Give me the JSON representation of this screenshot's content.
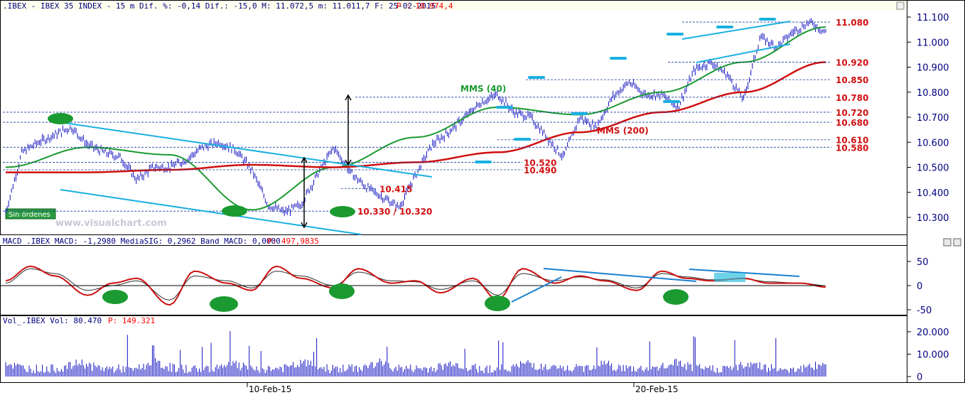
{
  "main_header": {
    "text": ".IBEX - IBEX 35 INDEX -  15 m Dif. %: -0,14 Dif.: -15,0 M: 11.072,5 m: 11.011,7 F: 25-02-2015 ",
    "p_label": "P : 10.974,4",
    "text_color": "#000080",
    "p_color": "#ff0000"
  },
  "macd_header": {
    "text": "MACD_.IBEX MACD: -1,2980 MediaSIG: 0,2962 Band_MACD: 0,0000 ",
    "p_label": "P: 497,9835"
  },
  "vol_header": {
    "text": "Vol_.IBEX Vol: 80.470 ",
    "p_label": "P: 149.321"
  },
  "watermark": "www.visualchart.com",
  "order_badge": "Sin órdenes",
  "colors": {
    "price_bars": "#1010c0",
    "mms40": "#1a9a30",
    "mms200": "#d01010",
    "trendline": "#1ab0e0",
    "level_text": "#d01010",
    "level_line": "#1a3aa0",
    "ellipse": "#1a9a30",
    "macd_line": "#cc1010",
    "signal_line": "#303030",
    "volume": "#1010c0",
    "axis_text": "#000080"
  },
  "chart_data": [
    {
      "type": "line",
      "title": "IBEX 35 INDEX 15 m",
      "y_scale_labels": [
        "11.100",
        "11.000",
        "10.900",
        "10.800",
        "10.700",
        "10.600",
        "10.500",
        "10.400",
        "10.300"
      ],
      "ylim": [
        10230,
        11120
      ],
      "x_labels": [
        "10-Feb-15",
        "20-Feb-15"
      ],
      "grid": false,
      "series": [
        {
          "name": "",
          "type": "price",
          "x": [
            0,
            2,
            4,
            6,
            8,
            10,
            12,
            14,
            16,
            18,
            20,
            22,
            24,
            26,
            28,
            30,
            32,
            34,
            36,
            38,
            40,
            42,
            44,
            46,
            48,
            50,
            52,
            54,
            56,
            58,
            60,
            62,
            64,
            66,
            68,
            70,
            72,
            74,
            76,
            78,
            80,
            82,
            84,
            86,
            88,
            90,
            92,
            94,
            96,
            98,
            100
          ],
          "values": [
            10320,
            10560,
            10600,
            10630,
            10660,
            10590,
            10560,
            10540,
            10450,
            10500,
            10500,
            10530,
            10580,
            10600,
            10570,
            10490,
            10350,
            10320,
            10350,
            10470,
            10580,
            10480,
            10420,
            10380,
            10340,
            10470,
            10590,
            10640,
            10700,
            10760,
            10790,
            10720,
            10700,
            10620,
            10540,
            10700,
            10660,
            10780,
            10840,
            10790,
            10790,
            10740,
            10890,
            10920,
            10870,
            10770,
            11020,
            10980,
            11040,
            11080,
            11040
          ]
        },
        {
          "name": "MMS (40)",
          "x": [
            0,
            10,
            20,
            30,
            40,
            50,
            60,
            70,
            80,
            90,
            100
          ],
          "values": [
            10500,
            10580,
            10550,
            10330,
            10500,
            10620,
            10740,
            10710,
            10800,
            10920,
            11060
          ]
        },
        {
          "name": "MMS (200)",
          "x": [
            0,
            10,
            20,
            30,
            40,
            50,
            60,
            70,
            80,
            90,
            100
          ],
          "values": [
            10480,
            10480,
            10490,
            10510,
            10500,
            10520,
            10560,
            10640,
            10720,
            10800,
            10920
          ]
        }
      ],
      "levels": [
        "11.080",
        "10.920",
        "10.850",
        "10.780",
        "10.720",
        "10.680",
        "10.610",
        "10.580",
        "10.520",
        "10.490",
        "10.415",
        "10.330 / 10.320"
      ],
      "annotations": [
        "MMS (40)",
        "MMS (200)"
      ]
    },
    {
      "type": "line",
      "title": "MACD_.IBEX",
      "y_scale_labels": [
        "50",
        "0",
        "-50"
      ],
      "ylim": [
        -60,
        75
      ],
      "series": [
        {
          "name": "",
          "x": [
            0,
            3,
            6,
            10,
            13,
            16,
            20,
            23,
            27,
            30,
            33,
            36,
            40,
            43,
            47,
            50,
            53,
            57,
            60,
            63,
            67,
            70,
            73,
            77,
            80,
            83,
            86,
            90,
            93,
            97,
            100
          ],
          "values": [
            10,
            40,
            20,
            -20,
            5,
            15,
            -40,
            30,
            5,
            -10,
            40,
            15,
            -5,
            35,
            5,
            10,
            -15,
            15,
            -30,
            35,
            5,
            20,
            10,
            -10,
            30,
            15,
            10,
            15,
            5,
            5,
            -3
          ]
        },
        {
          "name": "",
          "x": [
            0,
            3,
            6,
            10,
            13,
            16,
            20,
            23,
            27,
            30,
            33,
            36,
            40,
            43,
            47,
            50,
            53,
            57,
            60,
            63,
            67,
            70,
            73,
            77,
            80,
            83,
            86,
            90,
            93,
            97,
            100
          ],
          "values": [
            5,
            35,
            25,
            -10,
            0,
            10,
            -30,
            20,
            10,
            -5,
            30,
            20,
            0,
            28,
            10,
            8,
            -8,
            10,
            -20,
            25,
            10,
            18,
            12,
            -5,
            25,
            18,
            12,
            14,
            8,
            5,
            0
          ]
        }
      ]
    },
    {
      "type": "bar",
      "title": "Vol_.IBEX",
      "y_scale_labels": [
        "20.000",
        "10.000",
        "0"
      ],
      "ylim": [
        0,
        22000
      ]
    }
  ]
}
